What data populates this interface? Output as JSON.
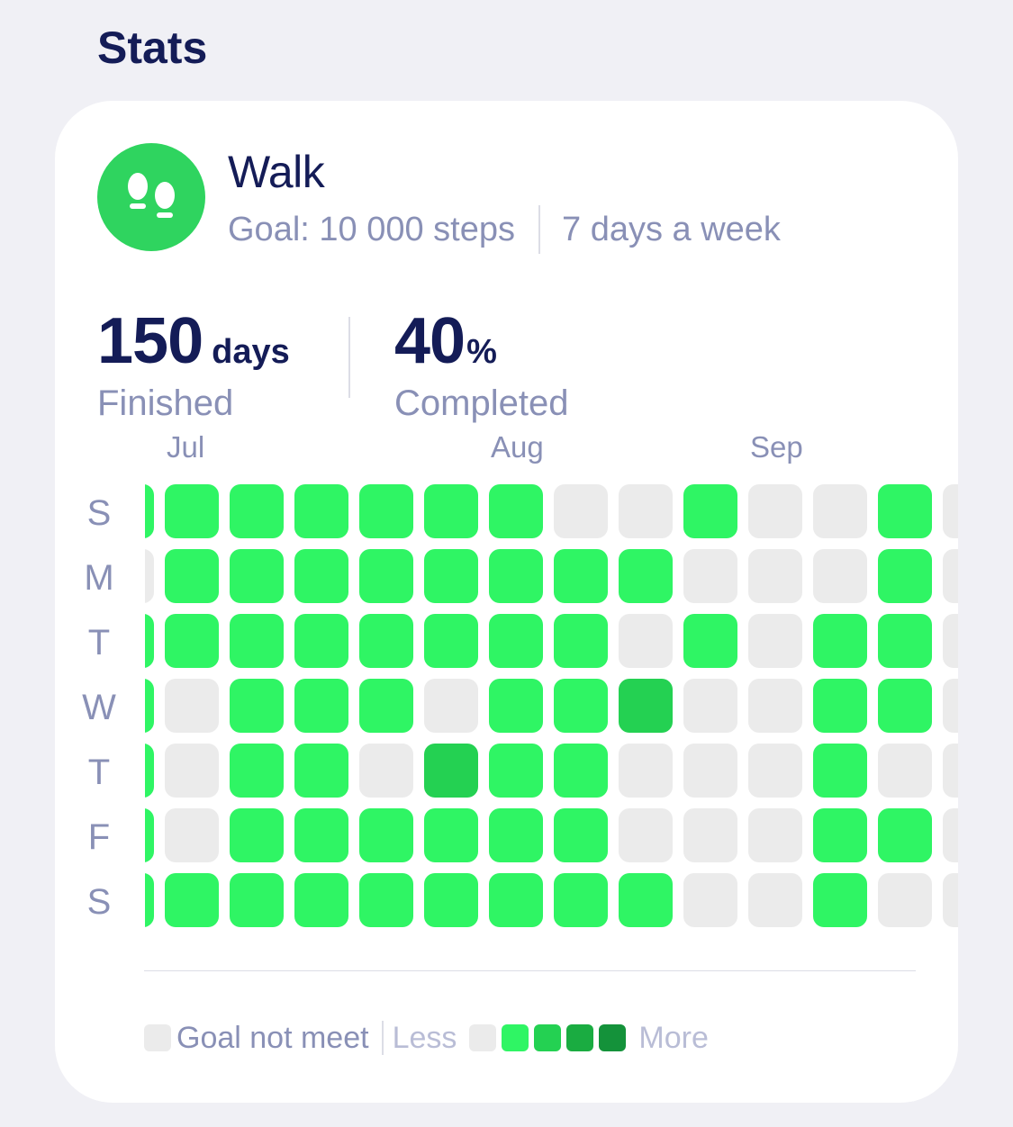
{
  "header": {
    "title": "Stats"
  },
  "habit": {
    "name": "Walk",
    "icon": "footprints-icon",
    "goal": "Goal: 10 000 steps",
    "frequency": "7 days a week",
    "accent": "#2fd45f"
  },
  "stats": {
    "finished": {
      "value": "150",
      "unit": "days",
      "label": "Finished"
    },
    "completed": {
      "value": "40",
      "unit": "%",
      "label": "Completed"
    }
  },
  "calendar": {
    "months": [
      "Jul",
      "Aug",
      "Sep"
    ],
    "weekdays": [
      "S",
      "M",
      "T",
      "W",
      "T",
      "F",
      "S"
    ],
    "levels_by_weekday": [
      [
        1,
        1,
        1,
        1,
        1,
        1,
        1,
        0,
        0,
        1,
        0,
        0,
        1,
        0
      ],
      [
        0,
        1,
        1,
        1,
        1,
        1,
        1,
        1,
        1,
        0,
        0,
        0,
        1,
        0
      ],
      [
        1,
        1,
        1,
        1,
        1,
        1,
        1,
        1,
        0,
        1,
        0,
        1,
        1,
        0
      ],
      [
        1,
        0,
        1,
        1,
        1,
        0,
        1,
        1,
        2,
        0,
        0,
        1,
        1,
        0
      ],
      [
        1,
        0,
        1,
        1,
        0,
        2,
        1,
        1,
        0,
        0,
        0,
        1,
        0,
        0
      ],
      [
        1,
        0,
        1,
        1,
        1,
        1,
        1,
        1,
        0,
        0,
        0,
        1,
        1,
        0
      ],
      [
        1,
        1,
        1,
        1,
        1,
        1,
        1,
        1,
        1,
        0,
        0,
        1,
        0,
        0
      ]
    ],
    "level_colors": [
      "#ebebeb",
      "#2ff564",
      "#24d152",
      "#1aac41",
      "#14923a"
    ]
  },
  "legend": {
    "not_met_label": "Goal not meet",
    "less_label": "Less",
    "more_label": "More"
  }
}
